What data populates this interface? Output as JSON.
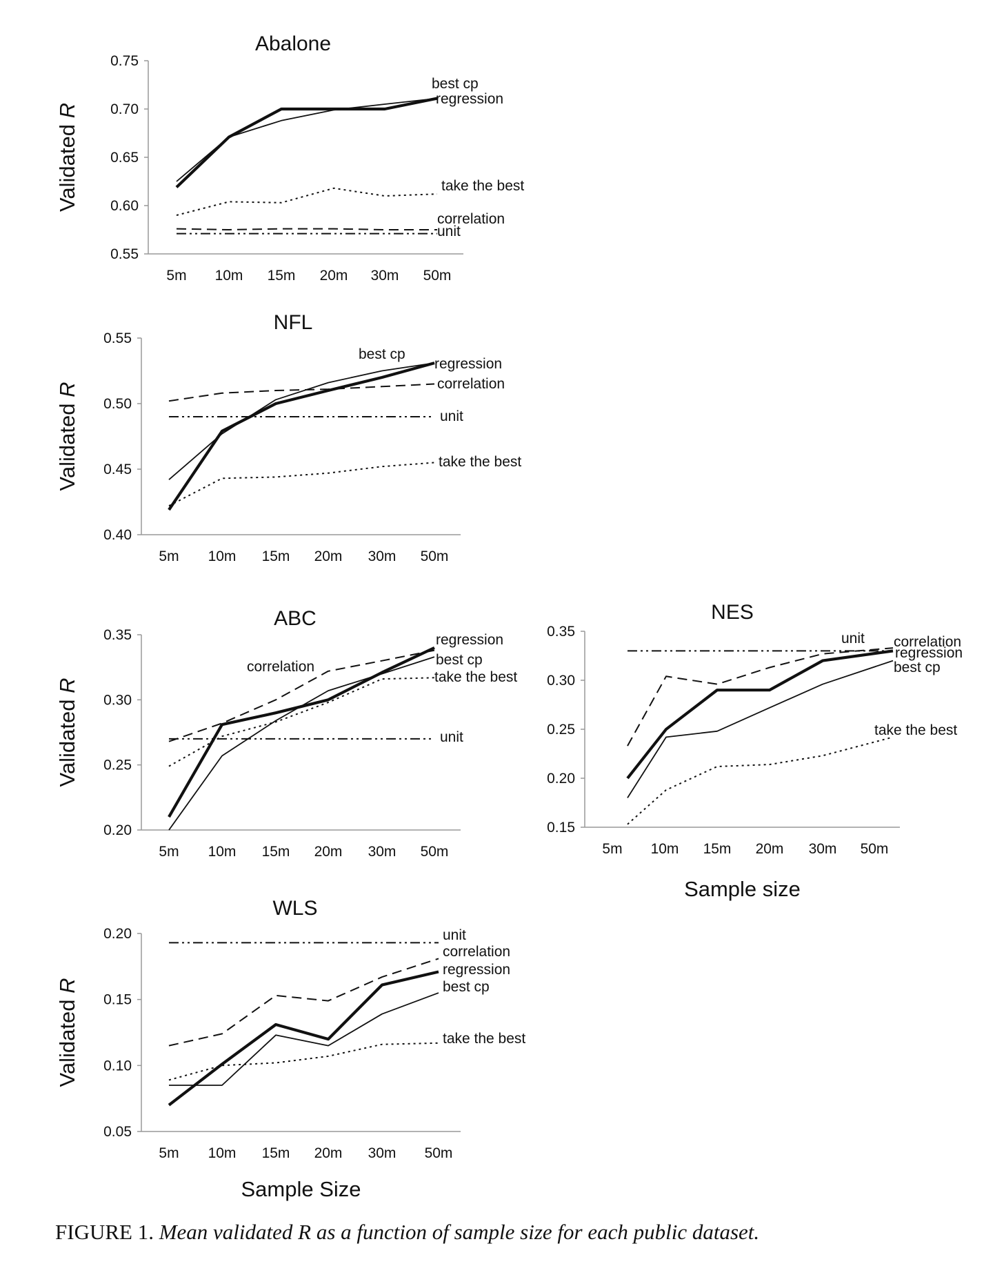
{
  "caption": {
    "label": "FIGURE 1.",
    "text": "Mean validated R as a function of sample size for each public dataset."
  },
  "chart_data": [
    {
      "type": "line",
      "title": "Abalone",
      "ylabel": "Validated R",
      "xlabel": "",
      "categories": [
        "5m",
        "10m",
        "15m",
        "20m",
        "30m",
        "50m"
      ],
      "ylim": [
        0.55,
        0.75
      ],
      "yticks": [
        "0.75",
        "0.70",
        "0.65",
        "0.60",
        "0.55"
      ],
      "series": [
        {
          "name": "best cp",
          "values": [
            0.619,
            0.671,
            0.7,
            0.7,
            0.7,
            0.711
          ]
        },
        {
          "name": "regression",
          "values": [
            0.625,
            0.671,
            0.688,
            0.699,
            0.705,
            0.711
          ]
        },
        {
          "name": "take the best",
          "values": [
            0.59,
            0.604,
            0.603,
            0.618,
            0.61,
            0.612
          ]
        },
        {
          "name": "correlation",
          "values": [
            0.576,
            0.575,
            0.576,
            0.576,
            0.575,
            0.575
          ]
        },
        {
          "name": "unit",
          "values": [
            0.571,
            0.571,
            0.571,
            0.571,
            0.571,
            0.571
          ]
        }
      ]
    },
    {
      "type": "line",
      "title": "NFL",
      "ylabel": "Validated R",
      "xlabel": "",
      "categories": [
        "5m",
        "10m",
        "15m",
        "20m",
        "30m",
        "50m"
      ],
      "ylim": [
        0.4,
        0.55
      ],
      "yticks": [
        "0.55",
        "0.50",
        "0.45",
        "0.40"
      ],
      "series": [
        {
          "name": "best cp",
          "values": [
            0.419,
            0.479,
            0.5,
            0.51,
            0.52,
            0.531
          ]
        },
        {
          "name": "regression",
          "values": [
            0.442,
            0.477,
            0.503,
            0.516,
            0.525,
            0.531
          ]
        },
        {
          "name": "correlation",
          "values": [
            0.502,
            0.508,
            0.51,
            0.511,
            0.513,
            0.515
          ]
        },
        {
          "name": "unit",
          "values": [
            0.49,
            0.49,
            0.49,
            0.49,
            0.49,
            0.49
          ]
        },
        {
          "name": "take the best",
          "values": [
            0.422,
            0.443,
            0.444,
            0.447,
            0.452,
            0.455
          ]
        }
      ]
    },
    {
      "type": "line",
      "title": "ABC",
      "ylabel": "Validated R",
      "xlabel": "",
      "categories": [
        "5m",
        "10m",
        "15m",
        "20m",
        "30m",
        "50m"
      ],
      "ylim": [
        0.2,
        0.35
      ],
      "yticks": [
        "0.35",
        "0.30",
        "0.25",
        "0.20"
      ],
      "series": [
        {
          "name": "regression",
          "values": [
            0.21,
            0.281,
            0.29,
            0.3,
            0.321,
            0.34
          ]
        },
        {
          "name": "best cp",
          "values": [
            0.2,
            0.257,
            0.284,
            0.307,
            0.32,
            0.333
          ]
        },
        {
          "name": "correlation",
          "values": [
            0.268,
            0.282,
            0.3,
            0.322,
            0.33,
            0.338
          ]
        },
        {
          "name": "take the best",
          "values": [
            0.249,
            0.272,
            0.283,
            0.298,
            0.316,
            0.317
          ]
        },
        {
          "name": "unit",
          "values": [
            0.27,
            0.27,
            0.27,
            0.27,
            0.27,
            0.27
          ]
        }
      ]
    },
    {
      "type": "line",
      "title": "NES",
      "ylabel": "",
      "xlabel": "Sample size",
      "categories": [
        "5m",
        "10m",
        "15m",
        "20m",
        "30m",
        "50m"
      ],
      "ylim": [
        0.15,
        0.35
      ],
      "yticks": [
        "0.35",
        "0.30",
        "0.25",
        "0.20",
        "0.15"
      ],
      "series": [
        {
          "name": "unit",
          "values": [
            0.33,
            0.33,
            0.33,
            0.33,
            0.33,
            0.33
          ]
        },
        {
          "name": "correlation",
          "values": [
            0.233,
            0.304,
            0.296,
            0.313,
            0.327,
            0.333
          ]
        },
        {
          "name": "regression",
          "values": [
            0.2,
            0.25,
            0.29,
            0.29,
            0.32,
            0.33
          ]
        },
        {
          "name": "best cp",
          "values": [
            0.18,
            0.242,
            0.248,
            0.272,
            0.296,
            0.32
          ]
        },
        {
          "name": "take the best",
          "values": [
            0.153,
            0.188,
            0.212,
            0.214,
            0.223,
            0.242
          ]
        }
      ]
    },
    {
      "type": "line",
      "title": "WLS",
      "ylabel": "Validated R",
      "xlabel": "Sample Size",
      "categories": [
        "5m",
        "10m",
        "15m",
        "20m",
        "30m",
        "50m"
      ],
      "ylim": [
        0.05,
        0.2
      ],
      "yticks": [
        "0.20",
        "0.15",
        "0.10",
        "0.05"
      ],
      "series": [
        {
          "name": "unit",
          "values": [
            0.193,
            0.193,
            0.193,
            0.193,
            0.193,
            0.193
          ]
        },
        {
          "name": "correlation",
          "values": [
            0.115,
            0.124,
            0.153,
            0.149,
            0.167,
            0.181
          ]
        },
        {
          "name": "regression",
          "values": [
            0.07,
            0.101,
            0.131,
            0.12,
            0.161,
            0.171
          ]
        },
        {
          "name": "best cp",
          "values": [
            0.085,
            0.085,
            0.123,
            0.115,
            0.139,
            0.155
          ]
        },
        {
          "name": "take the best",
          "values": [
            0.089,
            0.1,
            0.102,
            0.107,
            0.116,
            0.117
          ]
        }
      ]
    }
  ]
}
